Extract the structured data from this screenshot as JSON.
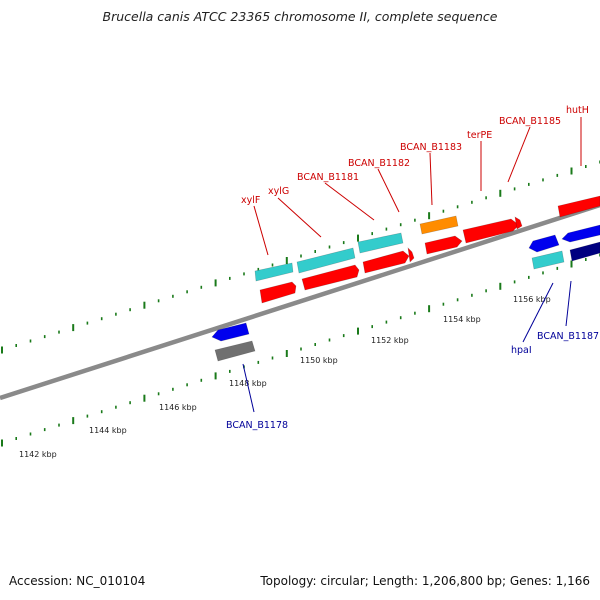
{
  "title": "Brucella canis ATCC 23365 chromosome II, complete sequence",
  "footer": {
    "accession": "Accession: NC_010104",
    "summary": "Topology: circular; Length: 1,206,800 bp; Genes: 1,166"
  },
  "colors": {
    "backbone": "#8a8a8a",
    "tick": "#1a7a1a",
    "forward_gene": "#ff0000",
    "reverse_gene": "#0000ee",
    "rna": "#33cccc",
    "orange_gene": "#ff8c00",
    "dark_gene": "#000080",
    "pseudo_gene": "#707070",
    "label_red": "#cc0000",
    "label_blue": "#000099"
  },
  "scale_labels": [
    {
      "kbp": 1142,
      "text": "1142 kbp"
    },
    {
      "kbp": 1144,
      "text": "1144 kbp"
    },
    {
      "kbp": 1146,
      "text": "1146 kbp"
    },
    {
      "kbp": 1148,
      "text": "1148 kbp"
    },
    {
      "kbp": 1150,
      "text": "1150 kbp"
    },
    {
      "kbp": 1152,
      "text": "1152 kbp"
    },
    {
      "kbp": 1154,
      "text": "1154 kbp"
    },
    {
      "kbp": 1156,
      "text": "1156 kbp"
    }
  ],
  "gene_labels": [
    {
      "name": "xylF",
      "strand": "forward"
    },
    {
      "name": "xylG",
      "strand": "forward"
    },
    {
      "name": "BCAN_B1181",
      "strand": "forward"
    },
    {
      "name": "BCAN_B1182",
      "strand": "forward"
    },
    {
      "name": "BCAN_B1183",
      "strand": "forward"
    },
    {
      "name": "terPE",
      "strand": "forward"
    },
    {
      "name": "BCAN_B1185",
      "strand": "forward"
    },
    {
      "name": "hutH",
      "strand": "forward"
    },
    {
      "name": "BCAN_B1178",
      "strand": "reverse"
    },
    {
      "name": "hpaI",
      "strand": "reverse"
    },
    {
      "name": "BCAN_B1187",
      "strand": "reverse"
    }
  ]
}
